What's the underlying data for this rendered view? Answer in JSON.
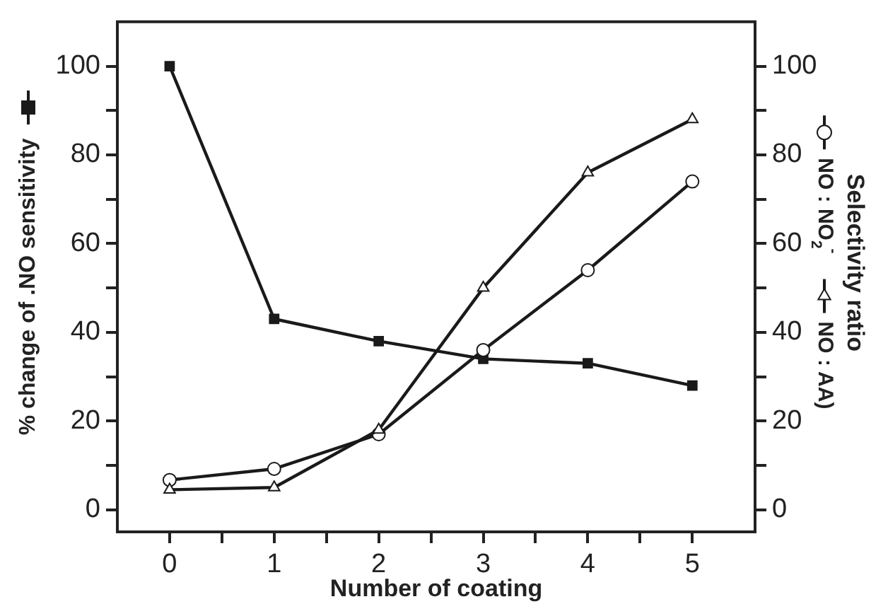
{
  "chart_data": {
    "type": "line",
    "xlabel": "Number of coating",
    "ylabel": "% change of .NO sensitivity",
    "y2label": "Selectivity ratio",
    "x": [
      0,
      1,
      2,
      3,
      4,
      5
    ],
    "series": [
      {
        "color": "#1a1a1a",
        "marker": "square",
        "values": [
          100,
          43,
          38,
          34,
          33,
          28
        ]
      },
      {
        "name": "NO : NO$_{2}$$^{-}$",
        "color": "#1a1a1a",
        "marker": "circle",
        "axis": "y2",
        "values": [
          6.7,
          9.2,
          17,
          36,
          54,
          74
        ]
      },
      {
        "name": "NO : AA)",
        "color": "#1a1a1a",
        "marker": "triangle",
        "axis": "y2",
        "values": [
          4.5,
          5,
          18,
          50,
          76,
          88
        ]
      }
    ],
    "xlim": [
      -0.5,
      5.6
    ],
    "xticks": [
      0,
      {
        "value": 0.5,
        "label": null
      },
      1,
      {
        "value": 1.5,
        "label": null
      },
      2,
      {
        "value": 2.5,
        "label": null
      },
      3,
      {
        "value": 3.5,
        "label": null
      },
      4,
      {
        "value": 4.5,
        "label": null
      },
      5
    ],
    "ylim": [
      -5,
      110
    ],
    "yticks": [
      0,
      {
        "value": 10,
        "label": null
      },
      20,
      {
        "value": 30,
        "label": null
      },
      40,
      {
        "value": 50,
        "label": null
      },
      60,
      {
        "value": 70,
        "label": null
      },
      80,
      {
        "value": 90,
        "label": null
      },
      100
    ],
    "y2lim": [
      -5,
      110
    ],
    "y2ticks": [
      0,
      {
        "value": 10,
        "label": null
      },
      20,
      {
        "value": 30,
        "label": null
      },
      40,
      {
        "value": 50,
        "label": null
      },
      60,
      {
        "value": 70,
        "label": null
      },
      80,
      {
        "value": 90,
        "label": null
      },
      100
    ],
    "legend": "right",
    "grid": false,
    "line_style": "solid"
  }
}
